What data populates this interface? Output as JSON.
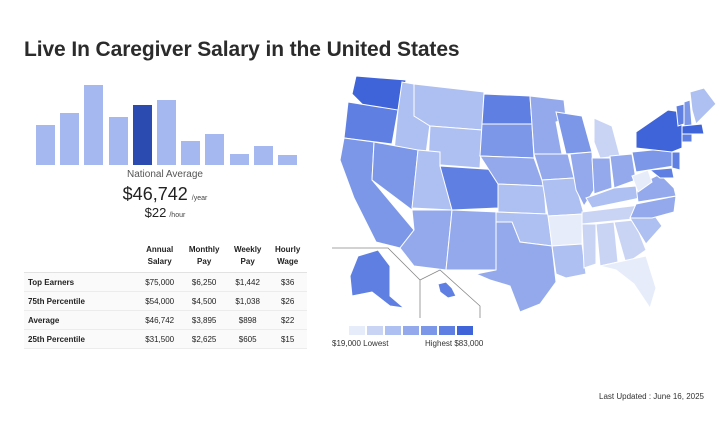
{
  "page": {
    "title": "Live In Caregiver Salary in the United States"
  },
  "histogram": {
    "values": [
      40,
      52,
      80,
      48,
      60,
      65,
      24,
      31,
      11,
      19,
      10
    ],
    "highlight_index": 4,
    "colors": {
      "bar": "#a6b8f0",
      "highlight": "#2b4bb0"
    }
  },
  "national": {
    "label": "National Average",
    "annual": "$46,742",
    "annual_unit": "/year",
    "hourly": "$22",
    "hourly_unit": "/hour"
  },
  "table": {
    "headers": {
      "annual_l1": "Annual",
      "annual_l2": "Salary",
      "monthly_l1": "Monthly",
      "monthly_l2": "Pay",
      "weekly_l1": "Weekly",
      "weekly_l2": "Pay",
      "hourly_l1": "Hourly",
      "hourly_l2": "Wage"
    },
    "rows": [
      {
        "label": "Top Earners",
        "annual": "$75,000",
        "monthly": "$6,250",
        "weekly": "$1,442",
        "hourly": "$36"
      },
      {
        "label": "75th Percentile",
        "annual": "$54,000",
        "monthly": "$4,500",
        "weekly": "$1,038",
        "hourly": "$26"
      },
      {
        "label": "Average",
        "annual": "$46,742",
        "monthly": "$3,895",
        "weekly": "$898",
        "hourly": "$22"
      },
      {
        "label": "25th Percentile",
        "annual": "$31,500",
        "monthly": "$2,625",
        "weekly": "$605",
        "hourly": "$15"
      }
    ]
  },
  "map": {
    "colors": [
      "#e6ecfa",
      "#c9d4f5",
      "#aebff1",
      "#93a9ec",
      "#7c97e8",
      "#5f80e2",
      "#3f63d9"
    ]
  },
  "legend": {
    "low": "$19,000 Lowest",
    "high": "Highest $83,000",
    "colors": [
      "#e6ecfa",
      "#c9d4f5",
      "#aebff1",
      "#93a9ec",
      "#7c97e8",
      "#5f80e2",
      "#3f63d9"
    ]
  },
  "footer": {
    "updated": "Last Updated : June 16, 2025"
  }
}
